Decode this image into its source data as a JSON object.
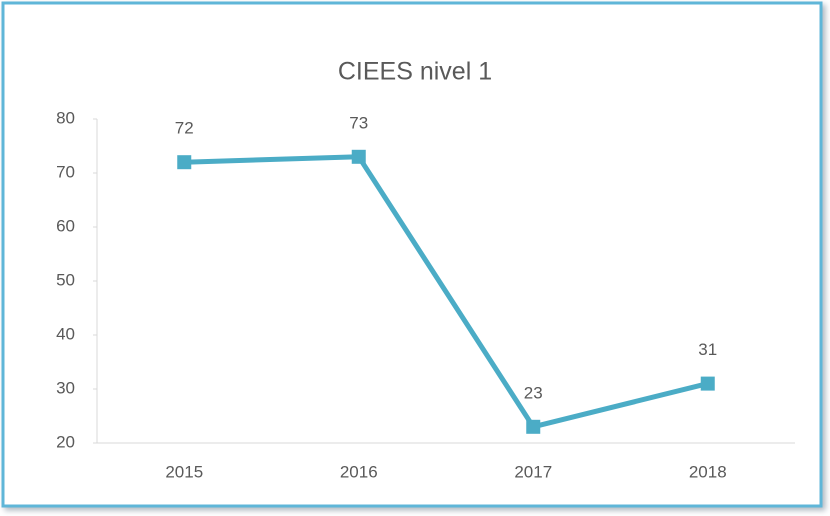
{
  "chart_data": {
    "type": "line",
    "title": "CIEES nivel 1",
    "categories": [
      "2015",
      "2016",
      "2017",
      "2018"
    ],
    "values": [
      72,
      73,
      23,
      31
    ],
    "color": "#4bacc6",
    "ylim": [
      20,
      80
    ],
    "yticks": [
      20,
      30,
      40,
      50,
      60,
      70,
      80
    ],
    "grid": false,
    "data_labels": true
  }
}
